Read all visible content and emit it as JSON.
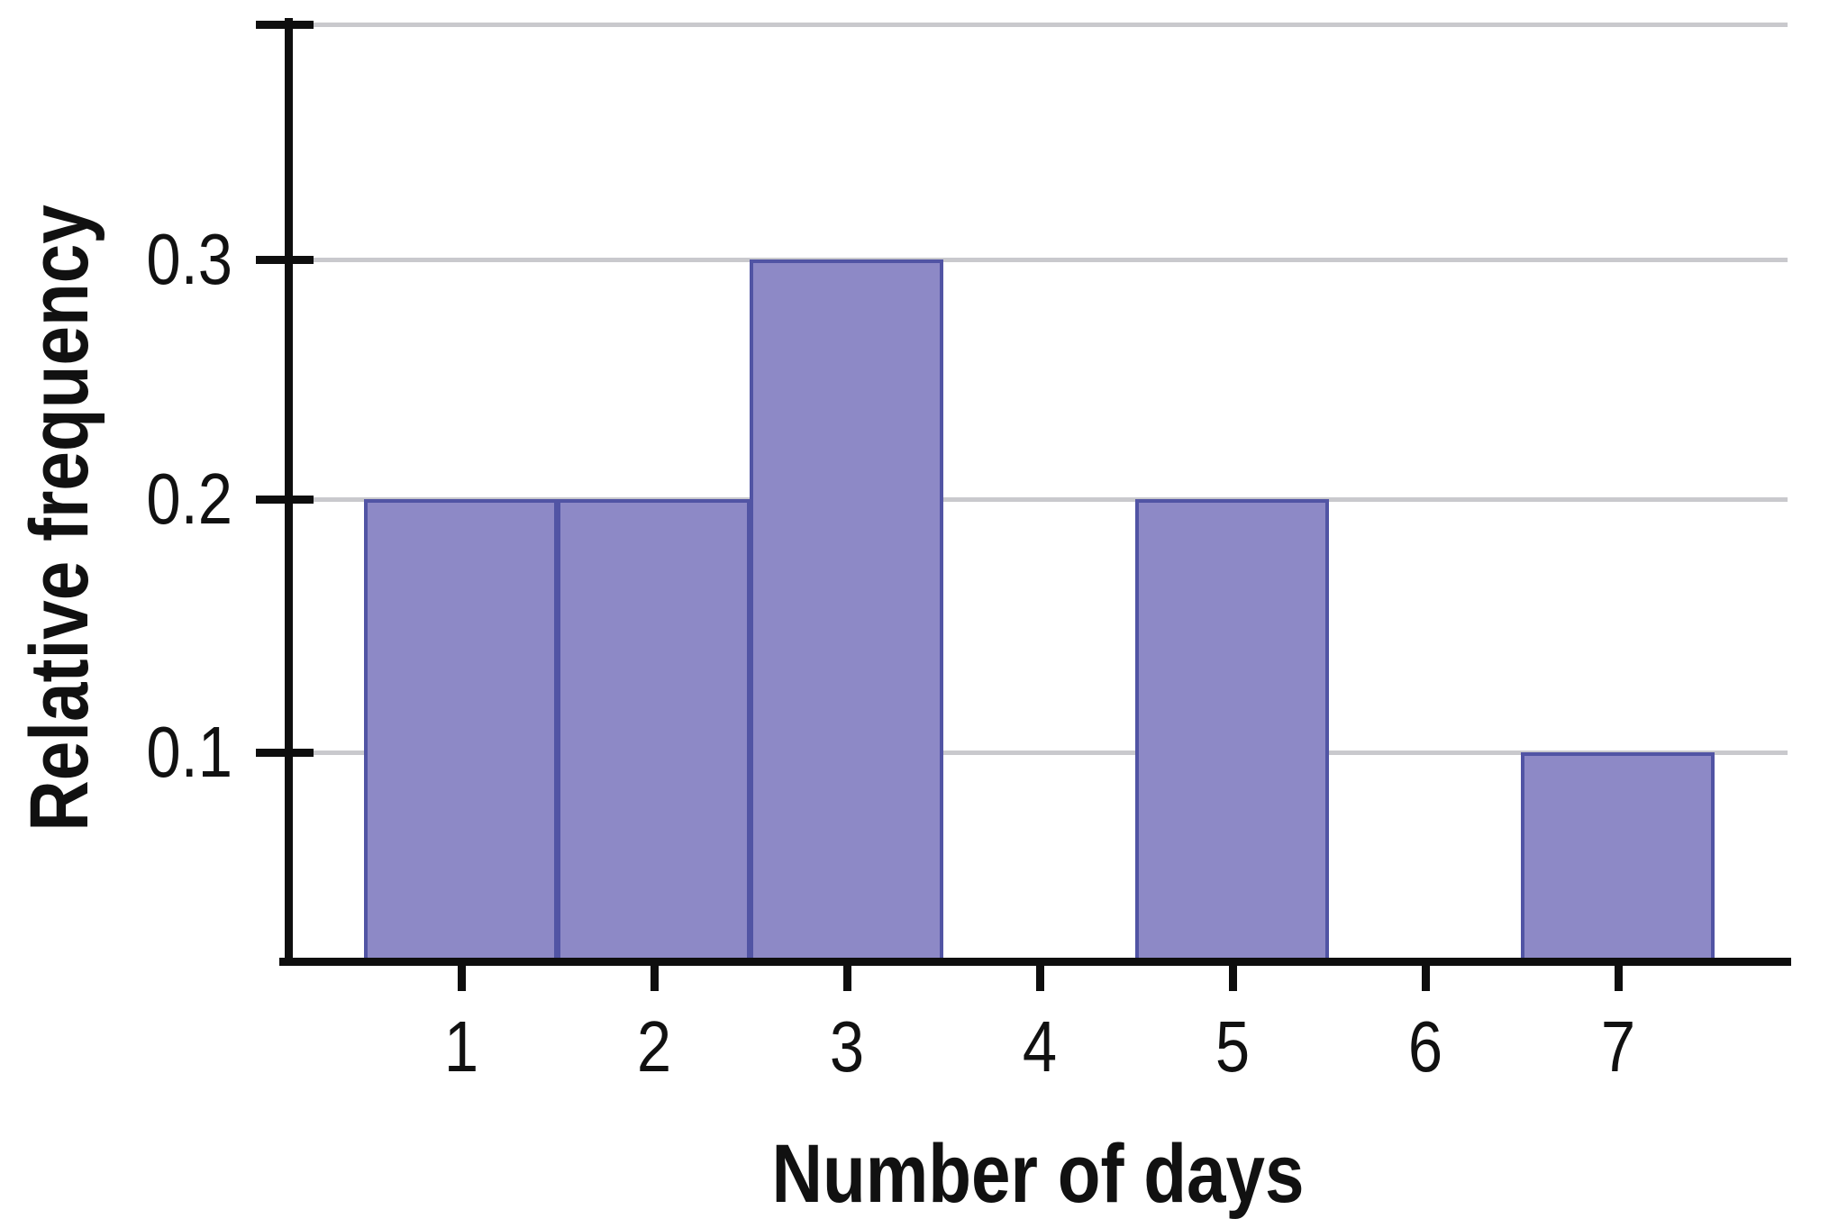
{
  "figure": {
    "background_color": "#ffffff",
    "text_color": "#111111",
    "axis_color": "#0e0e0e",
    "gridline_color": "#c9c9cd"
  },
  "chart_data": {
    "type": "bar",
    "title": "",
    "xlabel": "Number of days",
    "ylabel": "Relative frequency",
    "categories": [
      "1",
      "2",
      "3",
      "4",
      "5",
      "6",
      "7"
    ],
    "values": [
      0.2,
      0.2,
      0.3,
      0,
      0.2,
      0,
      0.1
    ],
    "ytick_labels": [
      "0.1",
      "0.2",
      "0.3"
    ],
    "ytick_values": [
      0.1,
      0.2,
      0.3
    ],
    "grid_values": [
      0.1,
      0.2,
      0.3,
      0.4
    ],
    "ylim": [
      0,
      0.4
    ],
    "xlim": [
      0,
      7.8
    ],
    "grid": "horizontal",
    "legend": "none",
    "bar_width_units": 1,
    "bar_fill_color": "#8d89c6",
    "bar_border_color": "#5154a4"
  }
}
